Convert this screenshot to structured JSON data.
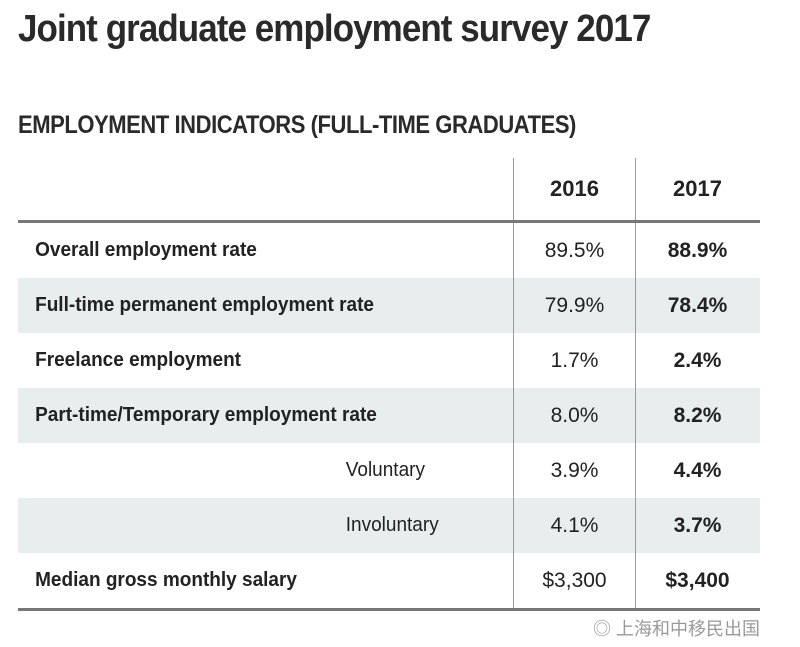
{
  "title": "Joint graduate employment survey 2017",
  "subtitle": "EMPLOYMENT INDICATORS (FULL-TIME GRADUATES)",
  "columns": [
    "2016",
    "2017"
  ],
  "rows": [
    {
      "label": "Overall employment rate",
      "v2016": "89.5%",
      "v2017": "88.9%"
    },
    {
      "label": "Full-time permanent employment rate",
      "v2016": "79.9%",
      "v2017": "78.4%"
    },
    {
      "label": "Freelance employment",
      "v2016": "1.7%",
      "v2017": "2.4%"
    },
    {
      "label": "Part-time/Temporary employment rate",
      "v2016": "8.0%",
      "v2017": "8.2%"
    },
    {
      "label": "Voluntary",
      "v2016": "3.9%",
      "v2017": "4.4%"
    },
    {
      "label": "Involuntary",
      "v2016": "4.1%",
      "v2017": "3.7%"
    },
    {
      "label": "Median gross monthly salary",
      "v2016": "$3,300",
      "v2017": "$3,400"
    }
  ],
  "watermark": "上海和中移民出国"
}
